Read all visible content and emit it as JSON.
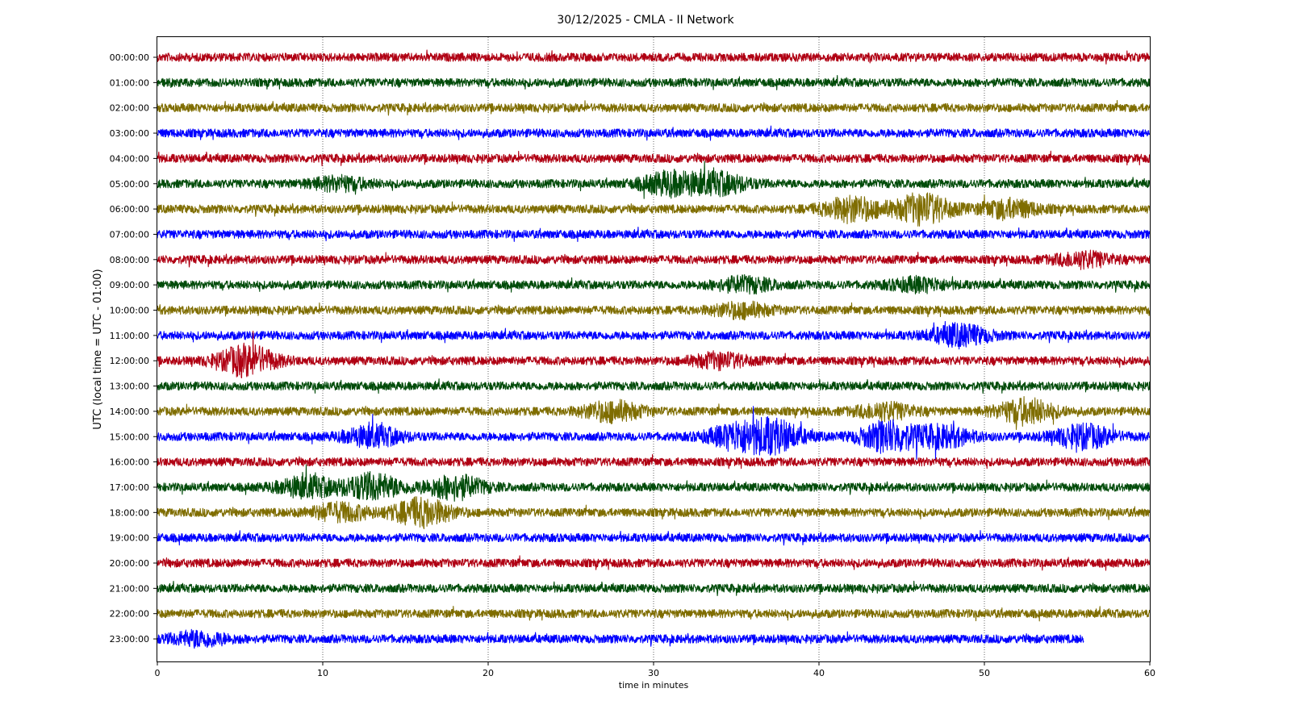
{
  "chart_data": {
    "type": "line",
    "title": "30/12/2025 - CMLA - II Network",
    "xlabel": "time in minutes",
    "ylabel": "UTC (local time = UTC - 01:00)",
    "xlim": [
      0,
      60
    ],
    "x_ticks": [
      "0",
      "10",
      "20",
      "30",
      "40",
      "50",
      "60"
    ],
    "grid": "vertical dotted lines at every 10 minutes",
    "colors": [
      "#b00013",
      "#004b09",
      "#7f6d00",
      "#0000ff"
    ],
    "series": [
      {
        "label": "00:00:00",
        "color": "#b00013",
        "end_min": 60,
        "bursts": []
      },
      {
        "label": "01:00:00",
        "color": "#004b09",
        "end_min": 60,
        "bursts": []
      },
      {
        "label": "02:00:00",
        "color": "#7f6d00",
        "end_min": 60,
        "bursts": []
      },
      {
        "label": "03:00:00",
        "color": "#0000ff",
        "end_min": 60,
        "bursts": []
      },
      {
        "label": "04:00:00",
        "color": "#b00013",
        "end_min": 60,
        "bursts": []
      },
      {
        "label": "05:00:00",
        "color": "#004b09",
        "end_min": 60,
        "bursts": [
          [
            31,
            1.5
          ],
          [
            34,
            1.3
          ],
          [
            11,
            0.8
          ]
        ]
      },
      {
        "label": "06:00:00",
        "color": "#7f6d00",
        "end_min": 60,
        "bursts": [
          [
            42,
            1.6
          ],
          [
            46.3,
            2.0
          ],
          [
            51.5,
            1.2
          ]
        ]
      },
      {
        "label": "07:00:00",
        "color": "#0000ff",
        "end_min": 60,
        "bursts": []
      },
      {
        "label": "08:00:00",
        "color": "#b00013",
        "end_min": 60,
        "bursts": [
          [
            56,
            0.9
          ]
        ]
      },
      {
        "label": "09:00:00",
        "color": "#004b09",
        "end_min": 60,
        "bursts": [
          [
            35.5,
            0.9
          ],
          [
            46,
            0.8
          ]
        ]
      },
      {
        "label": "10:00:00",
        "color": "#7f6d00",
        "end_min": 60,
        "bursts": [
          [
            35.3,
            0.9
          ]
        ]
      },
      {
        "label": "11:00:00",
        "color": "#0000ff",
        "end_min": 60,
        "bursts": [
          [
            48.5,
            1.4
          ]
        ]
      },
      {
        "label": "12:00:00",
        "color": "#b00013",
        "end_min": 60,
        "bursts": [
          [
            5.4,
            2.0
          ],
          [
            34,
            0.9
          ]
        ]
      },
      {
        "label": "13:00:00",
        "color": "#004b09",
        "end_min": 60,
        "bursts": []
      },
      {
        "label": "14:00:00",
        "color": "#7f6d00",
        "end_min": 60,
        "bursts": [
          [
            27.5,
            1.3
          ],
          [
            44,
            1.0
          ],
          [
            52.5,
            1.6
          ]
        ]
      },
      {
        "label": "15:00:00",
        "color": "#0000ff",
        "end_min": 60,
        "bursts": [
          [
            13,
            1.3
          ],
          [
            35,
            1.6
          ],
          [
            37.3,
            2.0
          ],
          [
            44.2,
            2.0
          ],
          [
            47.5,
            1.3
          ],
          [
            56,
            1.5
          ]
        ]
      },
      {
        "label": "16:00:00",
        "color": "#b00013",
        "end_min": 60,
        "bursts": []
      },
      {
        "label": "17:00:00",
        "color": "#004b09",
        "end_min": 60,
        "bursts": [
          [
            13,
            1.7
          ],
          [
            18,
            1.5
          ],
          [
            9,
            1.3
          ]
        ]
      },
      {
        "label": "18:00:00",
        "color": "#7f6d00",
        "end_min": 60,
        "bursts": [
          [
            16,
            1.8
          ],
          [
            11,
            1.1
          ]
        ]
      },
      {
        "label": "19:00:00",
        "color": "#0000ff",
        "end_min": 60,
        "bursts": []
      },
      {
        "label": "20:00:00",
        "color": "#b00013",
        "end_min": 60,
        "bursts": []
      },
      {
        "label": "21:00:00",
        "color": "#004b09",
        "end_min": 60,
        "bursts": []
      },
      {
        "label": "22:00:00",
        "color": "#7f6d00",
        "end_min": 60,
        "bursts": []
      },
      {
        "label": "23:00:00",
        "color": "#0000ff",
        "end_min": 56,
        "bursts": [
          [
            2.5,
            0.9
          ]
        ]
      }
    ]
  }
}
